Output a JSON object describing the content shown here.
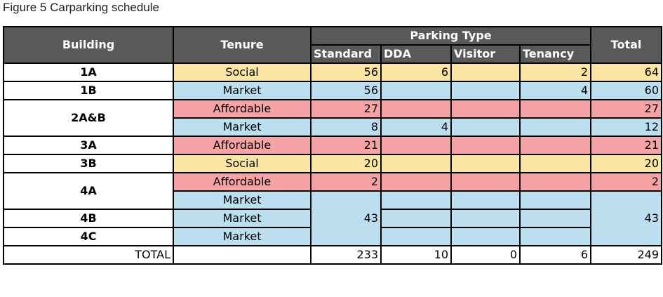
{
  "caption": "Figure 5 Carparking schedule",
  "headers": {
    "building": "Building",
    "tenure": "Tenure",
    "parking_type": "Parking Type",
    "standard": "Standard",
    "dda": "DDA",
    "visitor": "Visitor",
    "tenancy": "Tenancy",
    "total": "Total"
  },
  "rows": [
    {
      "building": "1A",
      "tenure": "Social",
      "standard": "56",
      "dda": "6",
      "visitor": "",
      "tenancy": "2",
      "total": "64"
    },
    {
      "building": "1B",
      "tenure": "Market",
      "standard": "56",
      "dda": "",
      "visitor": "",
      "tenancy": "4",
      "total": "60"
    },
    {
      "building": "2A&B",
      "tenure": "Affordable",
      "standard": "27",
      "dda": "",
      "visitor": "",
      "tenancy": "",
      "total": "27"
    },
    {
      "building": "",
      "tenure": "Market",
      "standard": "8",
      "dda": "4",
      "visitor": "",
      "tenancy": "",
      "total": "12"
    },
    {
      "building": "3A",
      "tenure": "Affordable",
      "standard": "21",
      "dda": "",
      "visitor": "",
      "tenancy": "",
      "total": "21"
    },
    {
      "building": "3B",
      "tenure": "Social",
      "standard": "20",
      "dda": "",
      "visitor": "",
      "tenancy": "",
      "total": "20"
    },
    {
      "building": "4A",
      "tenure": "Affordable",
      "standard": "2",
      "dda": "",
      "visitor": "",
      "tenancy": "",
      "total": "2"
    },
    {
      "building": "",
      "tenure": "Market",
      "standard": "43",
      "dda": "",
      "visitor": "",
      "tenancy": "",
      "total": "43"
    },
    {
      "building": "4B",
      "tenure": "Market"
    },
    {
      "building": "4C",
      "tenure": "Market"
    }
  ],
  "totals": {
    "label": "TOTAL",
    "tenure": "",
    "standard": "233",
    "dda": "10",
    "visitor": "0",
    "tenancy": "6",
    "total": "249"
  },
  "colors": {
    "social": "#fbe5a5",
    "market": "#bcdff0",
    "affordable": "#f6a3a5",
    "header": "#595959"
  }
}
